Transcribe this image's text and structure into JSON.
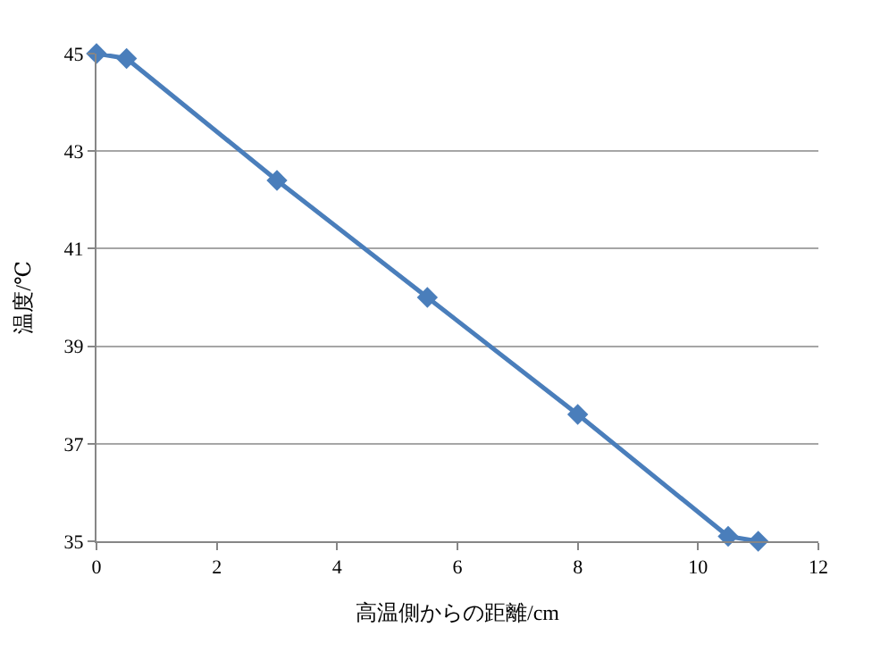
{
  "chart_data": {
    "type": "line",
    "xlabel": "高温側からの距離/cm",
    "ylabel": "温度/℃",
    "x": [
      0,
      0.5,
      3,
      5.5,
      8,
      10.5,
      11
    ],
    "series": [
      {
        "color": "#4a7ebb",
        "values": [
          45,
          44.9,
          42.4,
          40,
          37.6,
          35.1,
          35
        ]
      }
    ],
    "xlim": [
      0,
      12
    ],
    "xticks": [
      0,
      2,
      4,
      6,
      8,
      10,
      12
    ],
    "ylim": [
      35,
      45
    ],
    "yticks": [
      35,
      37,
      39,
      41,
      43,
      45
    ],
    "grid": "y",
    "marker": "diamond",
    "line_style": "solid",
    "legend": false
  }
}
